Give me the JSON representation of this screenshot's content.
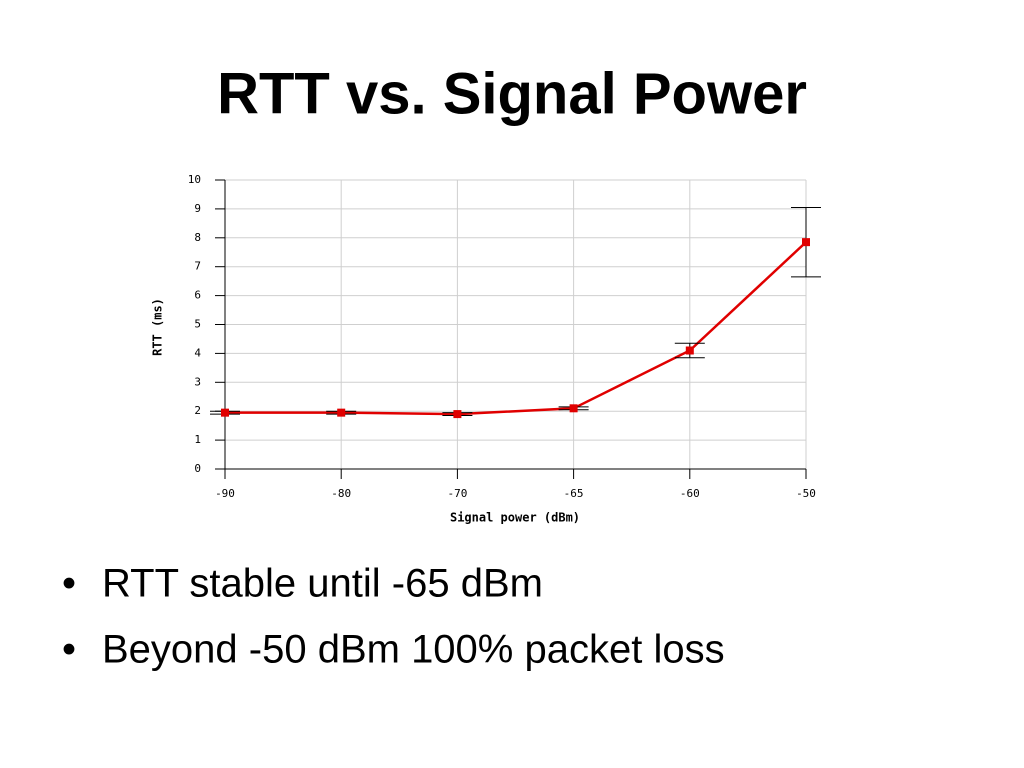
{
  "title": "RTT vs. Signal Power",
  "chart_data": {
    "type": "line",
    "xlabel": "Signal power (dBm)",
    "ylabel": "RTT (ms)",
    "categories": [
      "-90",
      "-80",
      "-70",
      "-65",
      "-60",
      "-50"
    ],
    "series": [
      {
        "name": "RTT",
        "color": "#e00000",
        "values": [
          1.95,
          1.95,
          1.9,
          2.1,
          4.1,
          7.85
        ],
        "errors": [
          0.05,
          0.05,
          0.05,
          0.05,
          0.25,
          1.2
        ]
      }
    ],
    "ylim": [
      0,
      10
    ],
    "yticks": [
      0,
      1,
      2,
      3,
      4,
      5,
      6,
      7,
      8,
      9,
      10
    ],
    "grid": true
  },
  "bullets": [
    "RTT stable until -65 dBm",
    "Beyond -50 dBm 100% packet loss"
  ]
}
